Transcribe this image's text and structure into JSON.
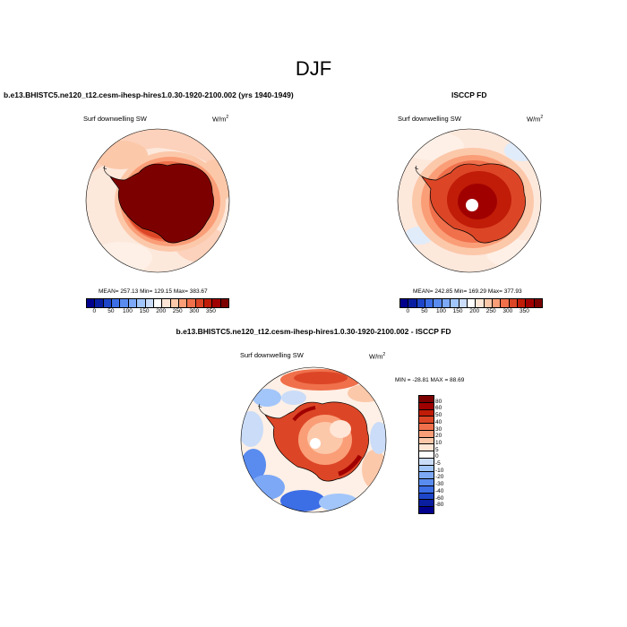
{
  "figure_title": "DJF",
  "panels": [
    {
      "title": "b.e13.BHISTC5.ne120_t12.cesm-ihesp-hires1.0.30-1920-2100.002 (yrs 1940-1949)",
      "variable": "Surf downwelling SW",
      "units_base": "W/m",
      "units_exp": "2",
      "stats": "MEAN= 257.13  Min= 129.15  Max= 383.67"
    },
    {
      "title": "ISCCP FD",
      "variable": "Surf downwelling SW",
      "units_base": "W/m",
      "units_exp": "2",
      "stats": "MEAN= 242.85  Min= 169.29  Max= 377.93"
    },
    {
      "title": "b.e13.BHISTC5.ne120_t12.cesm-ihesp-hires1.0.30-1920-2100.002 - ISCCP FD",
      "variable": "Surf downwelling SW",
      "units_base": "W/m",
      "units_exp": "2",
      "stats": "MIN = -28.81 MAX =  88.69"
    }
  ],
  "colorbar_abs": {
    "ticks": [
      "0",
      "50",
      "100",
      "150",
      "200",
      "250",
      "300",
      "350"
    ],
    "colors": [
      "#00008c",
      "#0a1ea0",
      "#1e46c8",
      "#3c6ee6",
      "#5a8cf0",
      "#7ca8f6",
      "#a2c6fa",
      "#cadcf8",
      "#ffffff",
      "#ffe6d6",
      "#fcc8aa",
      "#fa9e78",
      "#f0704c",
      "#dc4626",
      "#c01c08",
      "#a00000",
      "#7c0000"
    ]
  },
  "colorbar_diff": {
    "ticks": [
      "80",
      "60",
      "50",
      "40",
      "30",
      "20",
      "10",
      "5",
      "0",
      "-5",
      "-10",
      "-20",
      "-30",
      "-40",
      "-60",
      "-80"
    ],
    "colors": [
      "#7c0000",
      "#a00000",
      "#c01c08",
      "#dc4626",
      "#f0704c",
      "#fa9e78",
      "#fcc8aa",
      "#ffe6d6",
      "#ffffff",
      "#cadcf8",
      "#a2c6fa",
      "#7ca8f6",
      "#5a8cf0",
      "#3c6ee6",
      "#1e46c8",
      "#0a1ea0",
      "#00008c"
    ]
  }
}
